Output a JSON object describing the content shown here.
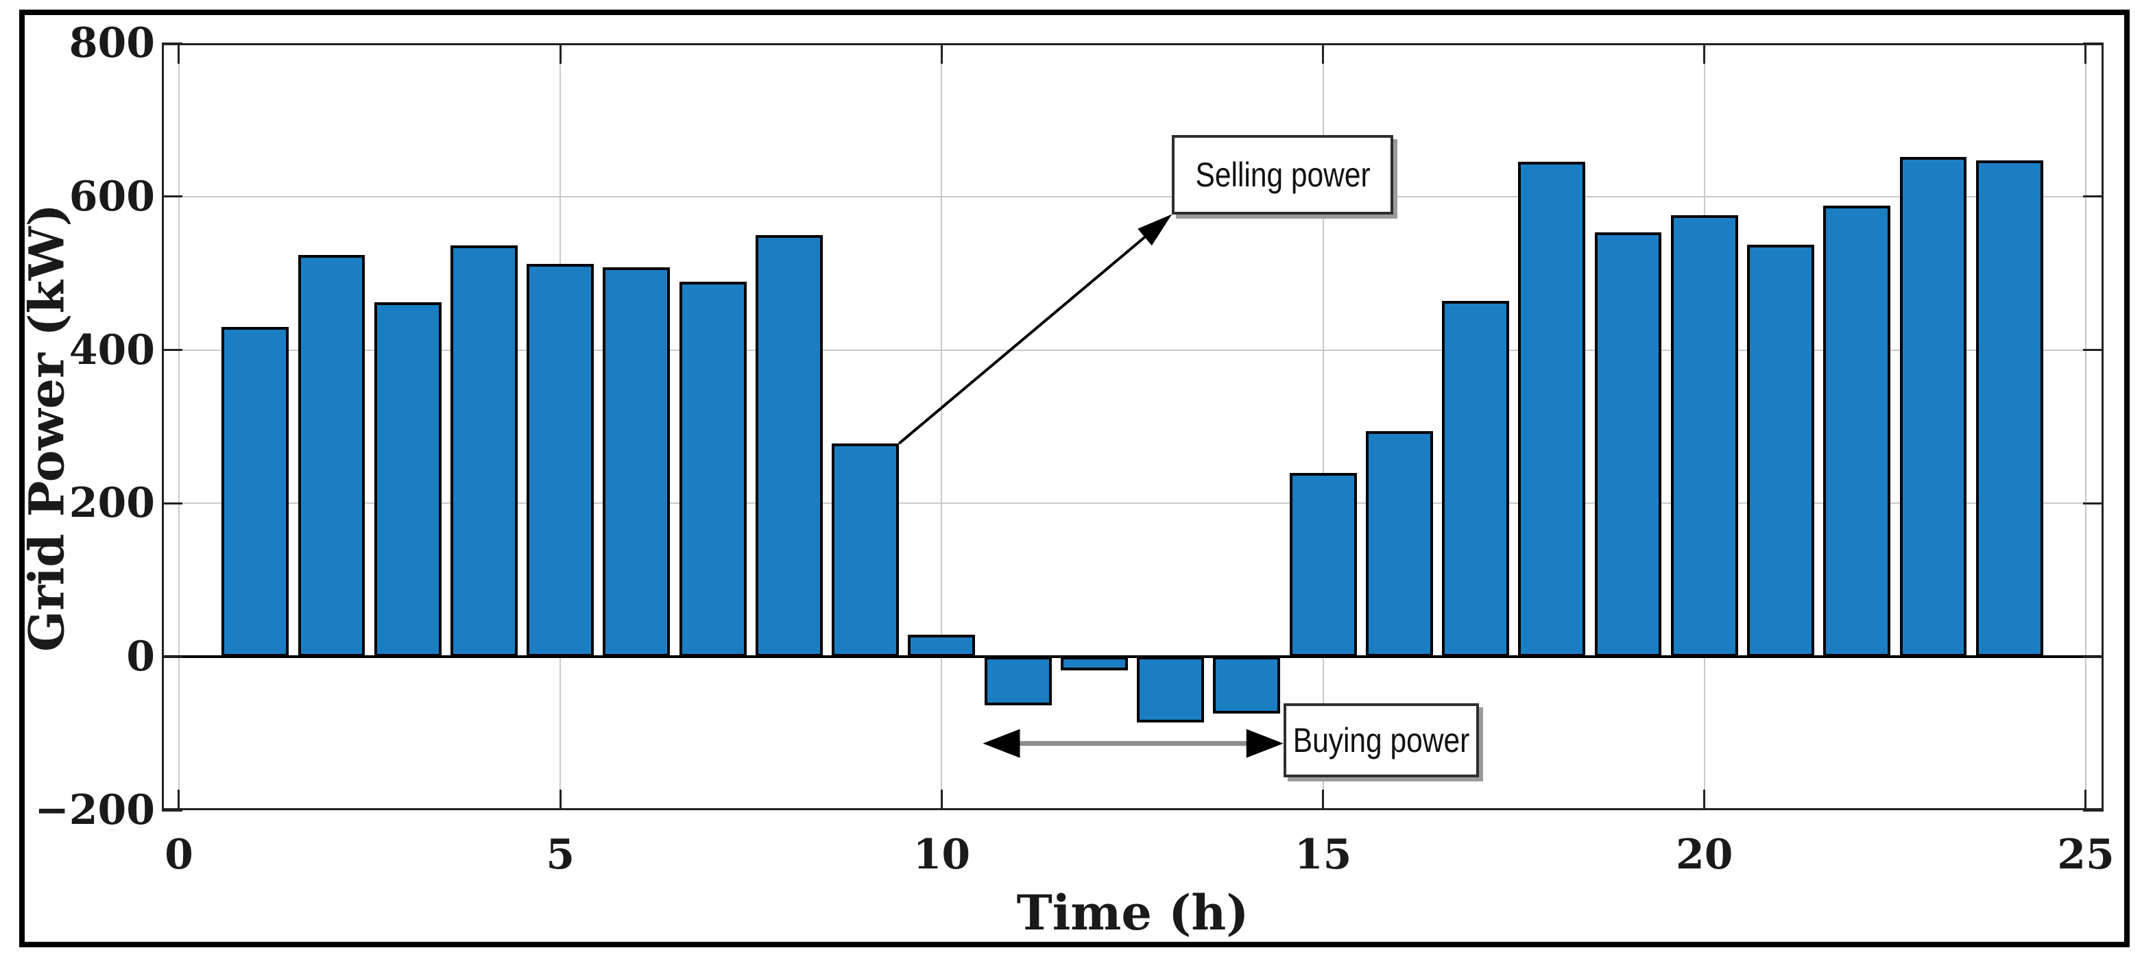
{
  "chart_data": {
    "type": "bar",
    "title": "",
    "xlabel": "Time (h)",
    "ylabel": "Grid Power (kW)",
    "hours": [
      1,
      2,
      3,
      4,
      5,
      6,
      7,
      8,
      9,
      10,
      11,
      12,
      13,
      14,
      15,
      16,
      17,
      18,
      19,
      20,
      21,
      22,
      23,
      24
    ],
    "values": [
      430,
      524,
      462,
      536,
      512,
      508,
      489,
      550,
      278,
      29,
      -63,
      -18,
      -86,
      -74,
      240,
      294,
      464,
      645,
      553,
      576,
      537,
      588,
      652,
      647
    ],
    "xlim": [
      -0.2247,
      25.234
    ],
    "ylim": [
      -200,
      800
    ],
    "xticks": [
      0,
      5,
      10,
      15,
      20,
      25
    ],
    "xtick_labels": [
      "0",
      "5",
      "10",
      "15",
      "20",
      "25"
    ],
    "yticks": [
      800,
      600,
      400,
      200,
      0,
      -200
    ],
    "ytick_labels": [
      "800",
      "600",
      "400",
      "200",
      "0",
      "−200"
    ],
    "bar_width": 0.88,
    "bar_color": "#1b7ec3",
    "bar_edge_color": "#000000",
    "grid": true,
    "grid_color": "#c9c9c9",
    "axis_color": "#222222",
    "zero_line_color": "#000000",
    "legend": "none",
    "annotations": [
      {
        "id": "selling",
        "text": "Selling power",
        "box": {
          "x1": 13.02,
          "x2": 15.92,
          "y_top": 680,
          "y_bottom": 577
        },
        "arrow": {
          "style": "single",
          "from": {
            "x": 9.44,
            "y": 278
          },
          "to": {
            "x": 13.02,
            "y": 577
          },
          "color": "#000000"
        }
      },
      {
        "id": "buying",
        "text": "Buying power",
        "box": {
          "x1": 14.48,
          "x2": 17.04,
          "y_top": -61,
          "y_bottom": -157
        },
        "arrow": {
          "style": "double",
          "x1": 10.54,
          "x2": 14.48,
          "y": -113,
          "shaft_color": "#8c8c8c",
          "head_color": "#000000"
        }
      }
    ]
  }
}
